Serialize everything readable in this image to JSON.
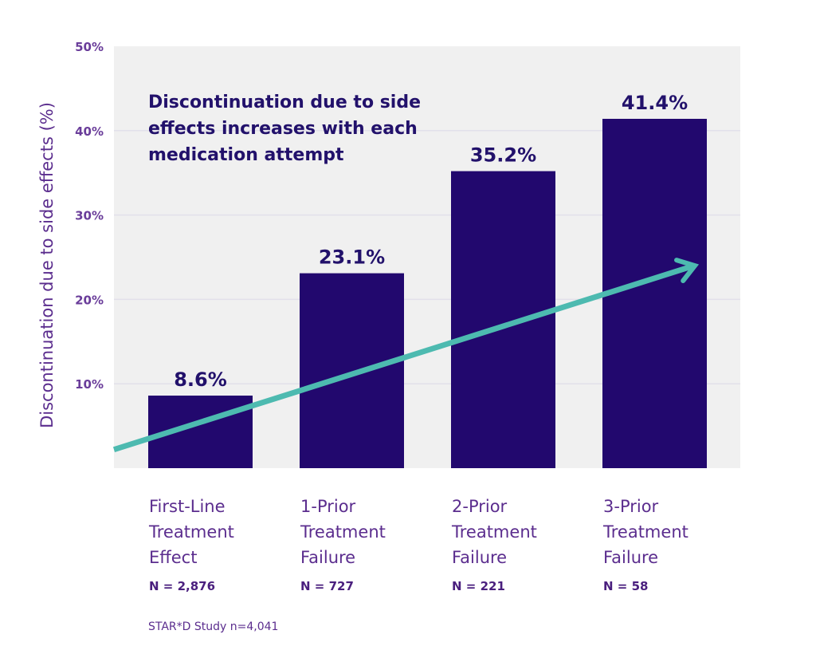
{
  "chart_data": {
    "type": "bar",
    "title": "",
    "annotation": [
      "Discontinuation due to side",
      "effects increases with each",
      "medication attempt"
    ],
    "xlabel": "",
    "ylabel": "Discontinuation due to side effects (%)",
    "ylim": [
      0,
      50
    ],
    "yticks": [
      10,
      20,
      30,
      40,
      50
    ],
    "ytick_labels": [
      "10%",
      "20%",
      "30%",
      "40%",
      "50%"
    ],
    "grid": true,
    "categories": [
      [
        "First-Line",
        "Treatment",
        "Effect"
      ],
      [
        "1-Prior",
        "Treatment",
        "Failure"
      ],
      [
        "2-Prior",
        "Treatment",
        "Failure"
      ],
      [
        "3-Prior",
        "Treatment",
        "Failure"
      ]
    ],
    "sample_sizes": [
      "N = 2,876",
      "N = 727",
      "N = 221",
      "N = 58"
    ],
    "values": [
      8.6,
      23.1,
      35.2,
      41.4
    ],
    "data_labels": [
      "8.6%",
      "23.1%",
      "35.2%",
      "41.4%"
    ],
    "trend_arrow": {
      "from_value": 2.2,
      "to_value": 24.0,
      "color": "#4dbab0"
    },
    "source": "STAR*D Study n=4,041",
    "colors": {
      "bar": "#22086e",
      "plot_bg": "#f0f0f0",
      "grid": "#e2e0ea",
      "axis_text": "#6a3d9a"
    }
  }
}
